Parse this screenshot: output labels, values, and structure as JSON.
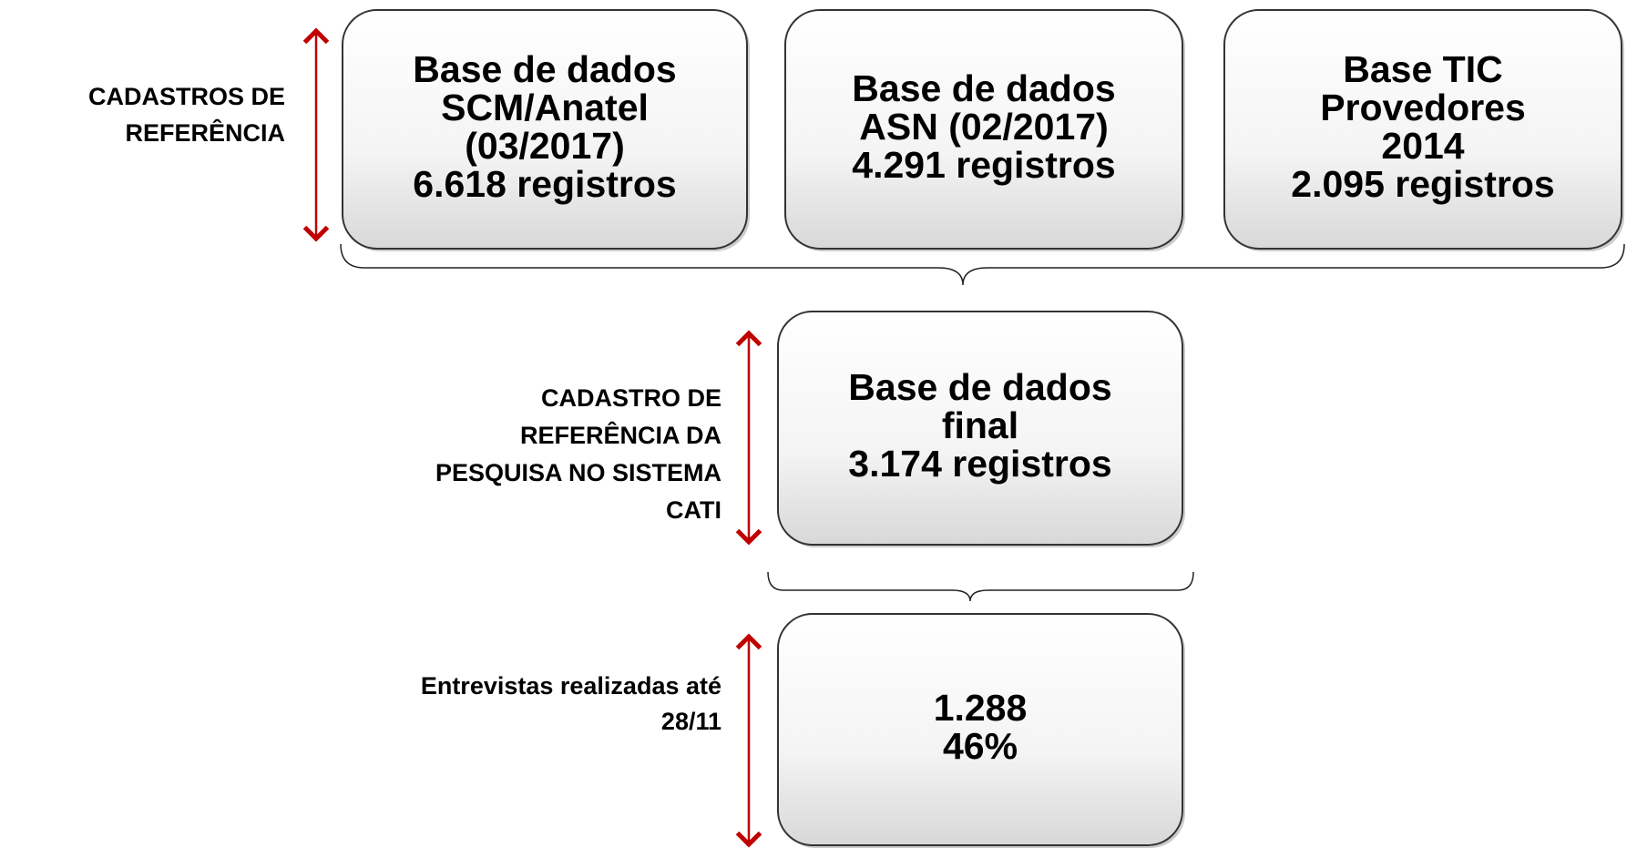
{
  "rows": [
    {
      "label": [
        "CADASTROS DE",
        "REFERÊNCIA"
      ],
      "boxes": [
        [
          "Base de dados",
          "SCM/Anatel",
          "(03/2017)",
          "6.618 registros"
        ],
        [
          "Base de dados",
          "ASN (02/2017)",
          "4.291 registros"
        ],
        [
          "Base TIC",
          "Provedores",
          "2014",
          "2.095 registros"
        ]
      ]
    },
    {
      "label": [
        "CADASTRO DE",
        "REFERÊNCIA DA",
        "PESQUISA NO SISTEMA",
        "CATI"
      ],
      "boxes": [
        [
          "Base de dados",
          "final",
          "3.174 registros"
        ]
      ]
    },
    {
      "label": [
        "Entrevistas realizadas até",
        "28/11"
      ],
      "boxes": [
        [
          "1.288",
          "46%"
        ]
      ]
    }
  ]
}
